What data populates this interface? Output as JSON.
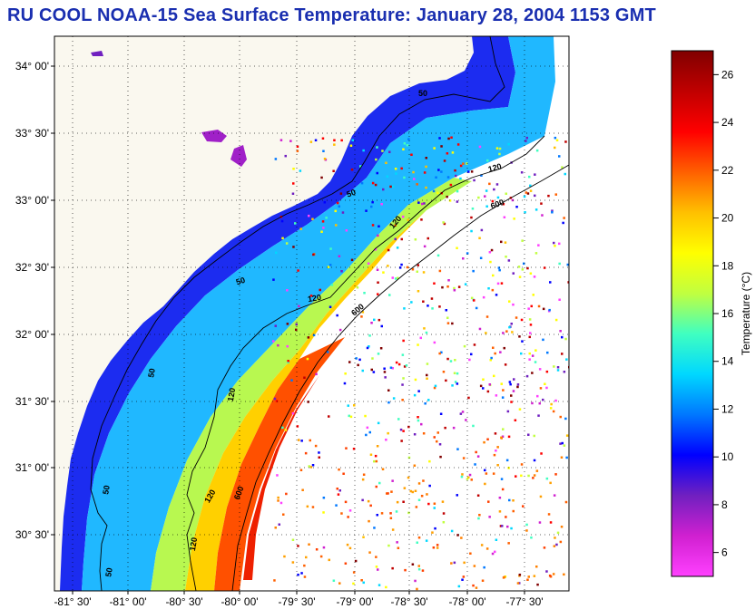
{
  "title": "RU COOL  NOAA-15  Sea Surface Temperature:  January 28, 2004 1153 GMT",
  "map": {
    "lat_ticks": [
      "34° 00'",
      "33° 30'",
      "33° 00'",
      "32° 30'",
      "32° 00'",
      "31° 30'",
      "31° 00'",
      "30° 30'"
    ],
    "lon_ticks": [
      "-81° 30'",
      "-81° 00'",
      "-80° 30'",
      "-80° 00'",
      "-79° 30'",
      "-79° 00'",
      "-78° 30'",
      "-78° 00'",
      "-77° 30'"
    ],
    "contour_labels": [
      "50",
      "50",
      "50",
      "50",
      "50",
      "50",
      "120",
      "120",
      "120",
      "120",
      "120",
      "120",
      "600",
      "600",
      "600"
    ]
  },
  "colorbar": {
    "label": "Temperature (°C)",
    "ticks": [
      "26",
      "24",
      "22",
      "20",
      "18",
      "16",
      "14",
      "12",
      "10",
      "8",
      "6"
    ],
    "range": [
      5,
      27
    ],
    "colors": [
      "#ff40ff",
      "#d020d0",
      "#7020c0",
      "#0000ff",
      "#0078ff",
      "#00d8ff",
      "#40ffc0",
      "#c0ff40",
      "#ffff00",
      "#ffc000",
      "#ff6000",
      "#ff0000",
      "#c00000",
      "#800000"
    ]
  }
}
